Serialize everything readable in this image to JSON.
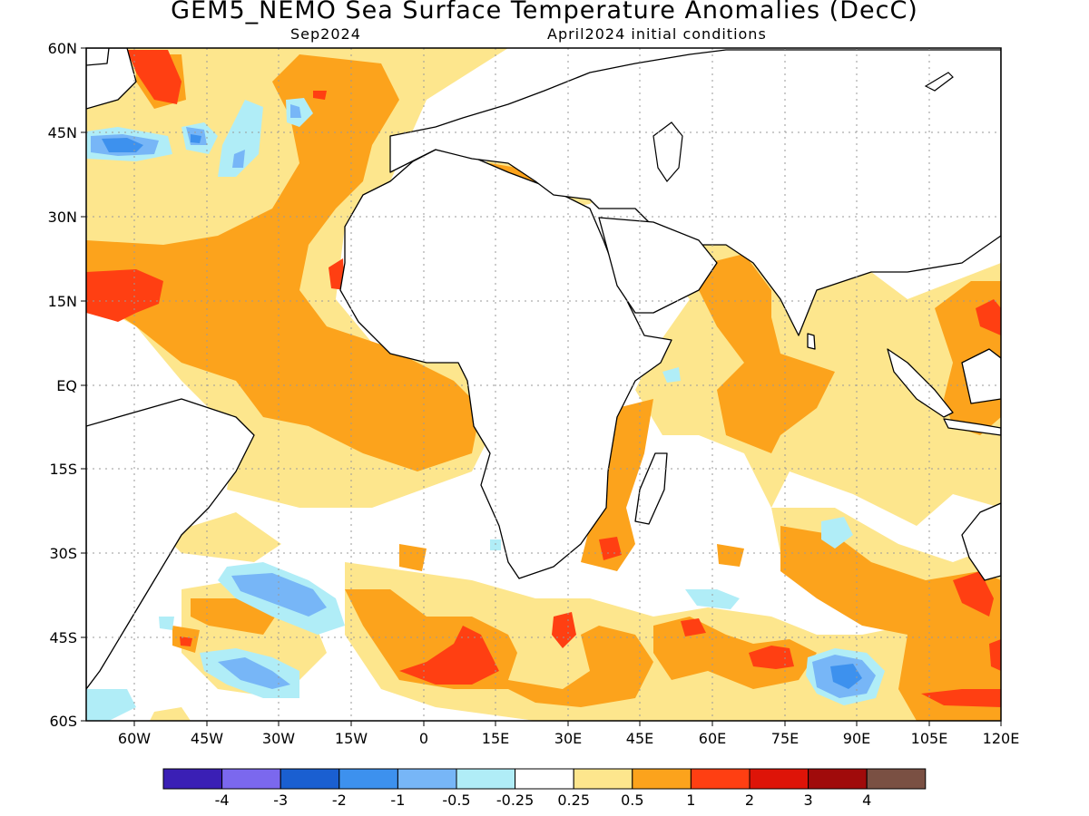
{
  "header": {
    "title": "GEM5_NEMO Sea Surface Temperature Anomalies (DecC)",
    "valid_month": "Sep2024",
    "init_conditions": "April2024 initial conditions"
  },
  "map": {
    "lon_range": [
      -70,
      120
    ],
    "lat_range": [
      -60,
      60
    ],
    "lat_labels": [
      "60N",
      "45N",
      "30N",
      "15N",
      "EQ",
      "15S",
      "30S",
      "45S",
      "60S"
    ],
    "lon_labels": [
      "60W",
      "45W",
      "30W",
      "15W",
      "0",
      "15E",
      "30E",
      "45E",
      "60E",
      "75E",
      "90E",
      "105E",
      "120E"
    ],
    "grid": true
  },
  "legend": {
    "colors": [
      "#3a1fb5",
      "#7b68ee",
      "#1a5fd1",
      "#3d91ee",
      "#77b6f7",
      "#b0edf7",
      "#ffffff",
      "#fde68d",
      "#fca31c",
      "#ff3f12",
      "#de1408",
      "#a00b0b",
      "#7a5043"
    ],
    "labels": [
      "-4",
      "-3",
      "-2",
      "-1",
      "-0.5",
      "-0.25",
      "0.25",
      "0.5",
      "1",
      "2",
      "3",
      "4"
    ]
  }
}
